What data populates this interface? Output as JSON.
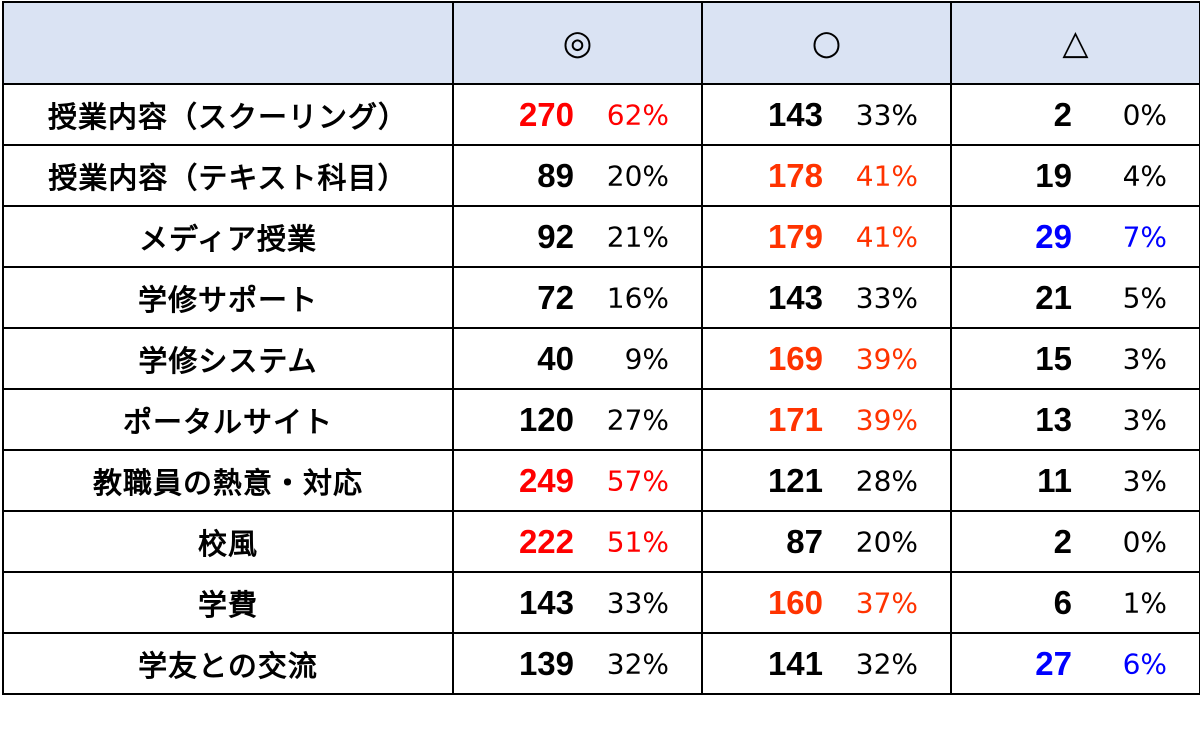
{
  "chart_data": {
    "type": "table",
    "columns": [
      "",
      "◎",
      "○",
      "△"
    ],
    "rows": [
      {
        "label": "授業内容（スクーリング）",
        "cells": [
          {
            "count": "270",
            "pct": "62%",
            "color": "#ff0000"
          },
          {
            "count": "143",
            "pct": "33%",
            "color": "#000000"
          },
          {
            "count": "2",
            "pct": "0%",
            "color": "#000000"
          }
        ]
      },
      {
        "label": "授業内容（テキスト科目）",
        "cells": [
          {
            "count": "89",
            "pct": "20%",
            "color": "#000000"
          },
          {
            "count": "178",
            "pct": "41%",
            "color": "#ff3300"
          },
          {
            "count": "19",
            "pct": "4%",
            "color": "#000000"
          }
        ]
      },
      {
        "label": "メディア授業",
        "cells": [
          {
            "count": "92",
            "pct": "21%",
            "color": "#000000"
          },
          {
            "count": "179",
            "pct": "41%",
            "color": "#ff3300"
          },
          {
            "count": "29",
            "pct": "7%",
            "color": "#0000ff"
          }
        ]
      },
      {
        "label": "学修サポート",
        "cells": [
          {
            "count": "72",
            "pct": "16%",
            "color": "#000000"
          },
          {
            "count": "143",
            "pct": "33%",
            "color": "#000000"
          },
          {
            "count": "21",
            "pct": "5%",
            "color": "#000000"
          }
        ]
      },
      {
        "label": "学修システム",
        "cells": [
          {
            "count": "40",
            "pct": "9%",
            "color": "#000000"
          },
          {
            "count": "169",
            "pct": "39%",
            "color": "#ff3300"
          },
          {
            "count": "15",
            "pct": "3%",
            "color": "#000000"
          }
        ]
      },
      {
        "label": "ポータルサイト",
        "cells": [
          {
            "count": "120",
            "pct": "27%",
            "color": "#000000"
          },
          {
            "count": "171",
            "pct": "39%",
            "color": "#ff3300"
          },
          {
            "count": "13",
            "pct": "3%",
            "color": "#000000"
          }
        ]
      },
      {
        "label": "教職員の熱意・対応",
        "cells": [
          {
            "count": "249",
            "pct": "57%",
            "color": "#ff0000"
          },
          {
            "count": "121",
            "pct": "28%",
            "color": "#000000"
          },
          {
            "count": "11",
            "pct": "3%",
            "color": "#000000"
          }
        ]
      },
      {
        "label": "校風",
        "cells": [
          {
            "count": "222",
            "pct": "51%",
            "color": "#ff0000"
          },
          {
            "count": "87",
            "pct": "20%",
            "color": "#000000"
          },
          {
            "count": "2",
            "pct": "0%",
            "color": "#000000"
          }
        ]
      },
      {
        "label": "学費",
        "cells": [
          {
            "count": "143",
            "pct": "33%",
            "color": "#000000"
          },
          {
            "count": "160",
            "pct": "37%",
            "color": "#ff3300"
          },
          {
            "count": "6",
            "pct": "1%",
            "color": "#000000"
          }
        ]
      },
      {
        "label": "学友との交流",
        "cells": [
          {
            "count": "139",
            "pct": "32%",
            "color": "#000000"
          },
          {
            "count": "141",
            "pct": "32%",
            "color": "#000000"
          },
          {
            "count": "27",
            "pct": "6%",
            "color": "#0000ff"
          }
        ]
      }
    ]
  }
}
